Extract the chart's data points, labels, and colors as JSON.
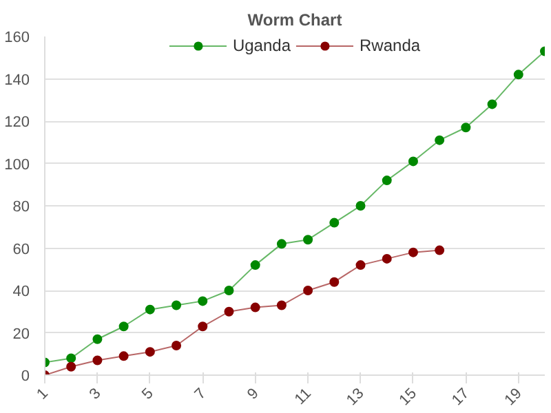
{
  "chart_data": {
    "type": "line",
    "title": "Worm Chart",
    "x": [
      1,
      2,
      3,
      4,
      5,
      6,
      7,
      8,
      9,
      10,
      11,
      12,
      13,
      14,
      15,
      16,
      17,
      18,
      19,
      20
    ],
    "series": [
      {
        "name": "Uganda",
        "color": "#008800",
        "values": [
          6,
          8,
          17,
          23,
          31,
          33,
          35,
          40,
          52,
          62,
          64,
          72,
          80,
          92,
          101,
          111,
          117,
          128,
          142,
          153
        ]
      },
      {
        "name": "Rwanda",
        "color": "#880000",
        "values": [
          0,
          4,
          7,
          9,
          11,
          14,
          23,
          30,
          32,
          33,
          40,
          44,
          52,
          55,
          58,
          59,
          null,
          null,
          null,
          null
        ]
      }
    ],
    "xlim": [
      1,
      20
    ],
    "xticks": [
      1,
      3,
      5,
      7,
      9,
      11,
      13,
      15,
      17,
      19
    ],
    "ylim": [
      0,
      160
    ],
    "yticks": [
      0,
      20,
      40,
      60,
      80,
      100,
      120,
      140,
      160
    ],
    "grid": "y",
    "legend": "top",
    "marker": "circle"
  }
}
